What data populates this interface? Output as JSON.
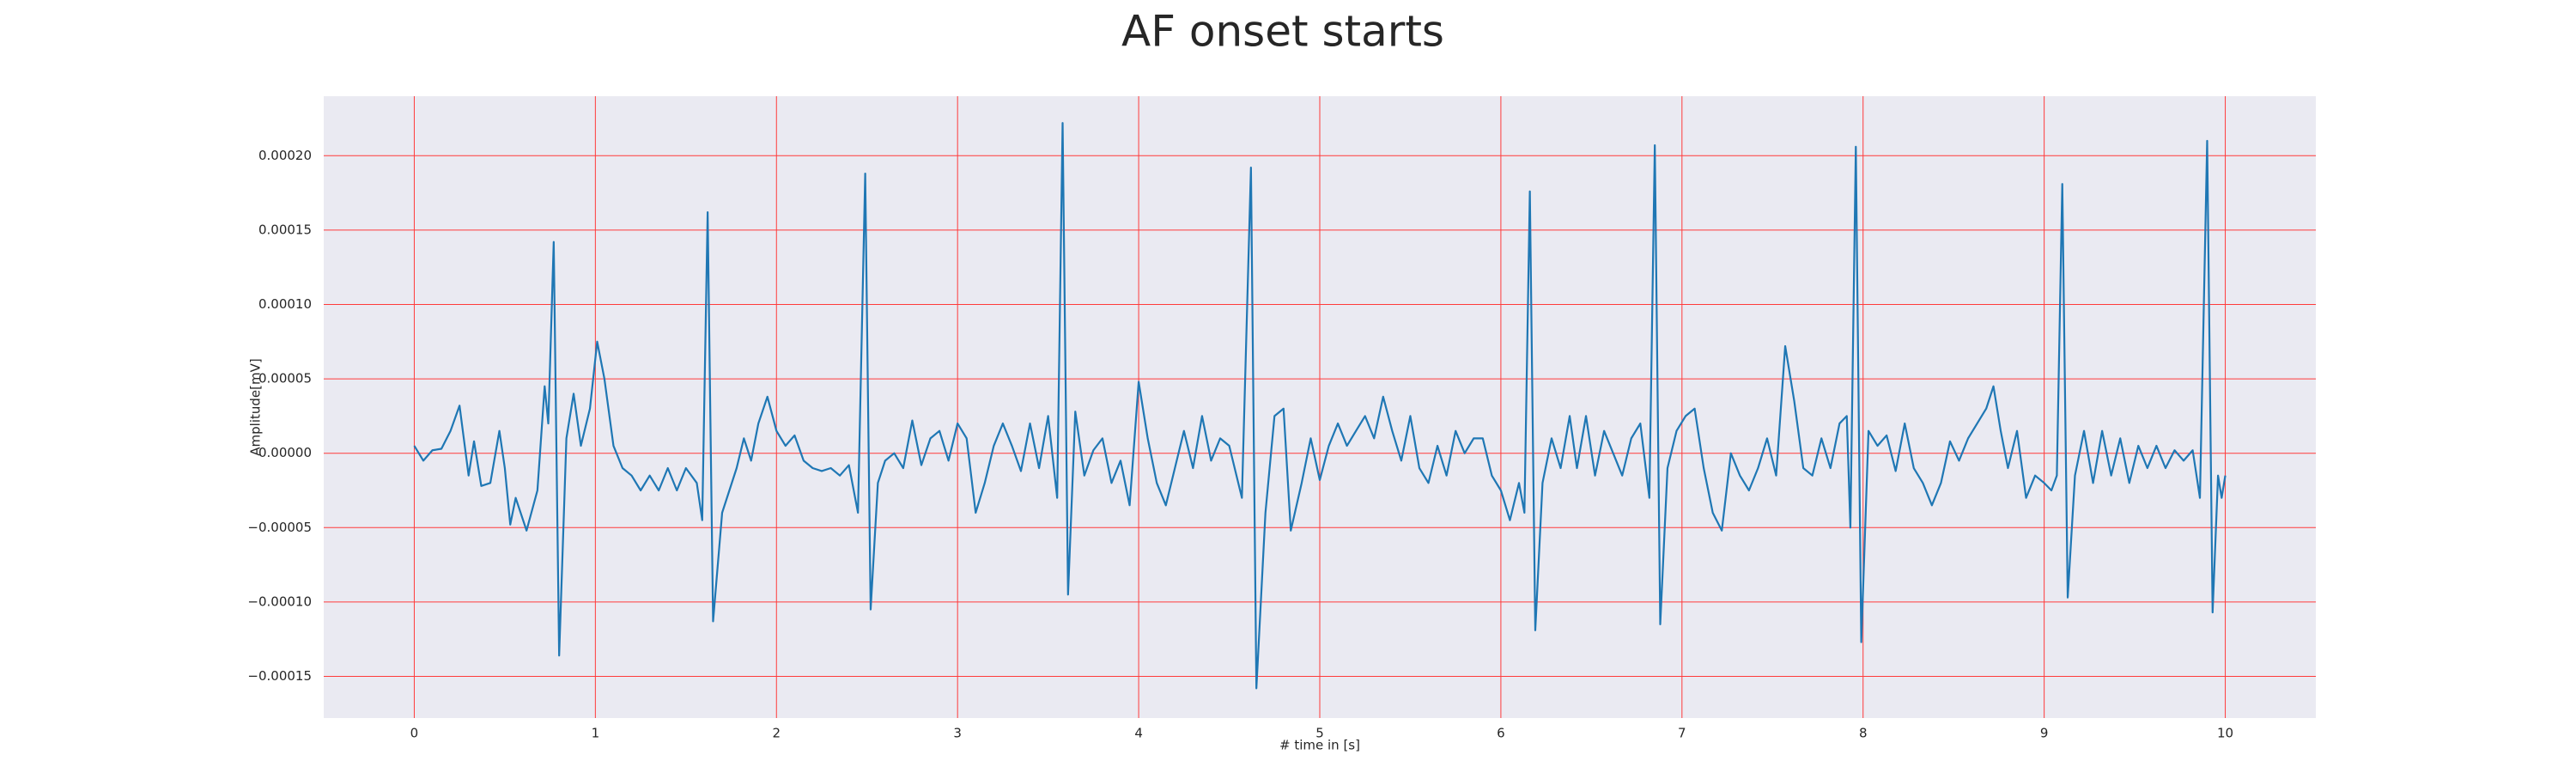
{
  "chart_data": {
    "type": "line",
    "title": "AF onset starts",
    "x_label": "# time in [s]",
    "y_label": "Amplitude[mV]",
    "color": "#1f77b4",
    "grid": true,
    "grid_color": "#ff3b3b",
    "xlim": [
      -0.5,
      10.5
    ],
    "ylim": [
      -0.000178,
      0.00024
    ],
    "xticks": [
      0,
      1,
      2,
      3,
      4,
      5,
      6,
      7,
      8,
      9,
      10
    ],
    "yticks": [
      {
        "value": -0.00015,
        "label": "−0.00015"
      },
      {
        "value": -0.0001,
        "label": "−0.00010"
      },
      {
        "value": -5e-05,
        "label": "−0.00005"
      },
      {
        "value": 0,
        "label": "0.00000"
      },
      {
        "value": 5e-05,
        "label": "0.00005"
      },
      {
        "value": 0.0001,
        "label": "0.00010"
      },
      {
        "value": 0.00015,
        "label": "0.00015"
      },
      {
        "value": 0.0002,
        "label": "0.00020"
      }
    ],
    "x": [
      0,
      0.05,
      0.1,
      0.15,
      0.2,
      0.25,
      0.3,
      0.33,
      0.37,
      0.42,
      0.47,
      0.5,
      0.53,
      0.56,
      0.62,
      0.68,
      0.72,
      0.74,
      0.77,
      0.8,
      0.84,
      0.88,
      0.92,
      0.97,
      1.01,
      1.05,
      1.1,
      1.15,
      1.2,
      1.25,
      1.3,
      1.35,
      1.4,
      1.45,
      1.5,
      1.56,
      1.59,
      1.62,
      1.65,
      1.7,
      1.78,
      1.82,
      1.86,
      1.9,
      1.95,
      2.0,
      2.05,
      2.1,
      2.15,
      2.2,
      2.25,
      2.3,
      2.35,
      2.4,
      2.45,
      2.49,
      2.52,
      2.56,
      2.6,
      2.65,
      2.7,
      2.75,
      2.8,
      2.85,
      2.9,
      2.95,
      3.0,
      3.05,
      3.1,
      3.15,
      3.2,
      3.25,
      3.3,
      3.35,
      3.4,
      3.45,
      3.5,
      3.55,
      3.58,
      3.61,
      3.65,
      3.7,
      3.75,
      3.8,
      3.85,
      3.9,
      3.95,
      4.0,
      4.05,
      4.1,
      4.15,
      4.2,
      4.25,
      4.3,
      4.35,
      4.4,
      4.45,
      4.5,
      4.57,
      4.62,
      4.65,
      4.7,
      4.75,
      4.8,
      4.84,
      4.9,
      4.95,
      5.0,
      5.05,
      5.1,
      5.15,
      5.2,
      5.25,
      5.3,
      5.35,
      5.4,
      5.45,
      5.5,
      5.55,
      5.6,
      5.65,
      5.7,
      5.75,
      5.8,
      5.85,
      5.9,
      5.95,
      6.0,
      6.05,
      6.1,
      6.13,
      6.16,
      6.19,
      6.23,
      6.28,
      6.33,
      6.38,
      6.42,
      6.47,
      6.52,
      6.57,
      6.62,
      6.67,
      6.72,
      6.77,
      6.82,
      6.85,
      6.88,
      6.92,
      6.97,
      7.02,
      7.07,
      7.12,
      7.17,
      7.22,
      7.27,
      7.32,
      7.37,
      7.42,
      7.47,
      7.52,
      7.57,
      7.62,
      7.67,
      7.72,
      7.77,
      7.82,
      7.87,
      7.91,
      7.93,
      7.96,
      7.99,
      8.03,
      8.08,
      8.13,
      8.18,
      8.23,
      8.28,
      8.33,
      8.38,
      8.43,
      8.48,
      8.53,
      8.58,
      8.63,
      8.68,
      8.72,
      8.76,
      8.8,
      8.85,
      8.9,
      8.95,
      9.0,
      9.04,
      9.07,
      9.1,
      9.13,
      9.17,
      9.22,
      9.27,
      9.32,
      9.37,
      9.42,
      9.47,
      9.52,
      9.57,
      9.62,
      9.67,
      9.72,
      9.77,
      9.82,
      9.86,
      9.9,
      9.93,
      9.96,
      9.98,
      10.0
    ],
    "values": [
      5e-06,
      -5e-06,
      2e-06,
      3e-06,
      1.5e-05,
      3.2e-05,
      -1.5e-05,
      8e-06,
      -2.2e-05,
      -2e-05,
      1.5e-05,
      -1e-05,
      -4.8e-05,
      -3e-05,
      -5.2e-05,
      -2.5e-05,
      4.5e-05,
      2e-05,
      0.000142,
      -0.000136,
      1e-05,
      4e-05,
      5e-06,
      3e-05,
      7.5e-05,
      5e-05,
      5e-06,
      -1e-05,
      -1.5e-05,
      -2.5e-05,
      -1.5e-05,
      -2.5e-05,
      -1e-05,
      -2.5e-05,
      -1e-05,
      -2e-05,
      -4.5e-05,
      0.000162,
      -0.000113,
      -4e-05,
      -1e-05,
      1e-05,
      -5e-06,
      2e-05,
      3.8e-05,
      1.5e-05,
      5e-06,
      1.2e-05,
      -5e-06,
      -1e-05,
      -1.2e-05,
      -1e-05,
      -1.5e-05,
      -8e-06,
      -4e-05,
      0.000188,
      -0.000105,
      -2e-05,
      -5e-06,
      0,
      -1e-05,
      2.2e-05,
      -8e-06,
      1e-05,
      1.5e-05,
      -5e-06,
      2e-05,
      1e-05,
      -4e-05,
      -2e-05,
      5e-06,
      2e-05,
      5e-06,
      -1.2e-05,
      2e-05,
      -1e-05,
      2.5e-05,
      -3e-05,
      0.000222,
      -9.5e-05,
      2.8e-05,
      -1.5e-05,
      2e-06,
      1e-05,
      -2e-05,
      -5e-06,
      -3.5e-05,
      4.8e-05,
      1e-05,
      -2e-05,
      -3.5e-05,
      -1e-05,
      1.5e-05,
      -1e-05,
      2.5e-05,
      -5e-06,
      1e-05,
      5e-06,
      -3e-05,
      0.000192,
      -0.000158,
      -4e-05,
      2.5e-05,
      3e-05,
      -5.2e-05,
      -2e-05,
      1e-05,
      -1.8e-05,
      5e-06,
      2e-05,
      5e-06,
      1.5e-05,
      2.5e-05,
      1e-05,
      3.8e-05,
      1.5e-05,
      -5e-06,
      2.5e-05,
      -1e-05,
      -2e-05,
      5e-06,
      -1.5e-05,
      1.5e-05,
      0,
      1e-05,
      1e-05,
      -1.5e-05,
      -2.5e-05,
      -4.5e-05,
      -2e-05,
      -4e-05,
      0.000176,
      -0.000119,
      -2e-05,
      1e-05,
      -1e-05,
      2.5e-05,
      -1e-05,
      2.5e-05,
      -1.5e-05,
      1.5e-05,
      0,
      -1.5e-05,
      1e-05,
      2e-05,
      -3e-05,
      0.000207,
      -0.000115,
      -1e-05,
      1.5e-05,
      2.5e-05,
      3e-05,
      -1e-05,
      -4e-05,
      -5.2e-05,
      0,
      -1.5e-05,
      -2.5e-05,
      -1e-05,
      1e-05,
      -1.5e-05,
      7.2e-05,
      3.5e-05,
      -1e-05,
      -1.5e-05,
      1e-05,
      -1e-05,
      2e-05,
      2.5e-05,
      -5e-05,
      0.000206,
      -0.000127,
      1.5e-05,
      5e-06,
      1.2e-05,
      -1.2e-05,
      2e-05,
      -1e-05,
      -2e-05,
      -3.5e-05,
      -2e-05,
      8e-06,
      -5e-06,
      1e-05,
      2e-05,
      3e-05,
      4.5e-05,
      1.5e-05,
      -1e-05,
      1.5e-05,
      -3e-05,
      -1.5e-05,
      -2e-05,
      -2.5e-05,
      -1.5e-05,
      0.000181,
      -9.7e-05,
      -1.5e-05,
      1.5e-05,
      -2e-05,
      1.5e-05,
      -1.5e-05,
      1e-05,
      -2e-05,
      5e-06,
      -1e-05,
      5e-06,
      -1e-05,
      2e-06,
      -5e-06,
      2e-06,
      -3e-05,
      0.00021,
      -0.000107,
      -1.5e-05,
      -3e-05,
      -1.5e-05
    ]
  }
}
